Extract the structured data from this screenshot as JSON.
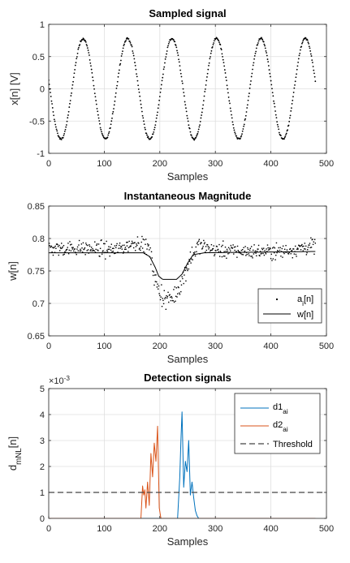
{
  "chart_data": [
    {
      "type": "scatter",
      "title": "Sampled signal",
      "xlabel": "Samples",
      "ylabel": "x[n] [V]",
      "xlim": [
        0,
        500
      ],
      "ylim": [
        -1,
        1
      ],
      "xticks": [
        "0",
        "100",
        "200",
        "300",
        "400",
        "500"
      ],
      "yticks": [
        "-1",
        "-0.5",
        "0",
        "0.5",
        "1"
      ],
      "grid": true,
      "series": [
        {
          "amplitude": 0.78,
          "period_samples": 80,
          "n_start": 0,
          "n_end": 480,
          "values_at_peaks": {
            "n": [
              62,
              142,
              222,
              302,
              382,
              462
            ],
            "y": [
              0.78,
              0.78,
              0.78,
              0.78,
              0.78,
              0.78
            ]
          },
          "values_at_troughs": {
            "n": [
              22,
              102,
              182,
              262,
              342,
              422
            ],
            "y": [
              -0.78,
              -0.78,
              -0.78,
              -0.78,
              -0.78,
              -0.78
            ]
          },
          "start_value": 0.05,
          "end_value": 0.1
        }
      ]
    },
    {
      "type": "scatter",
      "title": "Instantaneous Magnitude",
      "xlabel": "Samples",
      "ylabel": "w[n]",
      "xlim": [
        0,
        500
      ],
      "ylim": [
        0.65,
        0.85
      ],
      "xticks": [
        "0",
        "100",
        "200",
        "300",
        "400",
        "500"
      ],
      "yticks": [
        "0.65",
        "0.7",
        "0.75",
        "0.8",
        "0.85"
      ],
      "grid": true,
      "legend": "bottom-right",
      "series": [
        {
          "name": "a",
          "name_subscript": "i",
          "name_suffix": "[n]",
          "style": "dots",
          "x": [
            0,
            60,
            120,
            160,
            180,
            195,
            210,
            225,
            240,
            255,
            270,
            300,
            360,
            420,
            480
          ],
          "y": [
            0.785,
            0.785,
            0.782,
            0.795,
            0.785,
            0.725,
            0.705,
            0.71,
            0.735,
            0.77,
            0.79,
            0.782,
            0.78,
            0.78,
            0.79
          ]
        },
        {
          "name": "w[n]",
          "style": "line",
          "x": [
            0,
            170,
            182,
            192,
            198,
            205,
            230,
            240,
            250,
            260,
            280,
            480
          ],
          "y": [
            0.778,
            0.778,
            0.772,
            0.755,
            0.742,
            0.737,
            0.737,
            0.745,
            0.762,
            0.775,
            0.778,
            0.78
          ]
        }
      ]
    },
    {
      "type": "line",
      "title": "Detection signals",
      "xlabel": "Samples",
      "ylabel": "d",
      "ylabel_subscript": "mNL",
      "ylabel_suffix": "[n]",
      "exponent_label": "×10",
      "exponent_power": "-3",
      "xlim": [
        0,
        500
      ],
      "ylim": [
        0,
        5
      ],
      "xticks": [
        "0",
        "100",
        "200",
        "300",
        "400",
        "500"
      ],
      "yticks": [
        "0",
        "1",
        "2",
        "3",
        "4",
        "5"
      ],
      "grid": true,
      "legend": "top-right",
      "series": [
        {
          "name": "d1",
          "name_subscript": "ai",
          "color": "#0072BD",
          "x": [
            0,
            232,
            236,
            238,
            240,
            243,
            246,
            249,
            252,
            255,
            258,
            261,
            264,
            267,
            270,
            480
          ],
          "y": [
            0,
            0,
            1.6,
            3.0,
            4.1,
            1.2,
            2.2,
            1.8,
            3.0,
            0.9,
            1.4,
            0.8,
            0.3,
            0.1,
            0,
            0
          ]
        },
        {
          "name": "d2",
          "name_subscript": "ai",
          "color": "#D95319",
          "x": [
            0,
            166,
            169,
            171,
            173,
            175,
            178,
            181,
            184,
            187,
            190,
            193,
            196,
            199,
            202,
            480
          ],
          "y": [
            0,
            0,
            1.25,
            0.9,
            1.1,
            0.4,
            1.4,
            0.5,
            2.5,
            1.6,
            2.9,
            2.2,
            3.55,
            0.4,
            0,
            0
          ]
        },
        {
          "name": "Threshold",
          "style": "dashed",
          "color": "#444444",
          "x": [
            0,
            500
          ],
          "y": [
            1,
            1
          ]
        }
      ]
    }
  ]
}
